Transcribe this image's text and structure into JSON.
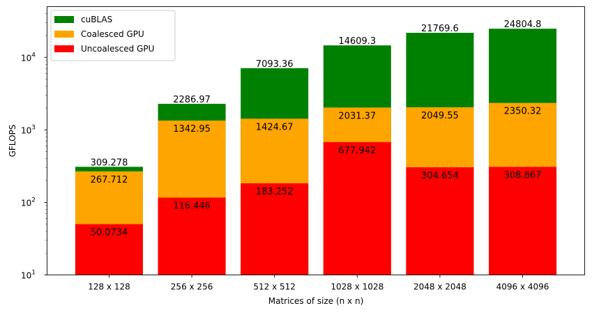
{
  "chart_data": {
    "type": "bar",
    "stacking": "overlaid",
    "xlabel": "Matrices of size (n x n)",
    "ylabel": "GFLOPS",
    "yscale": "log",
    "ylim": [
      10,
      50000
    ],
    "categories": [
      "128 x 128",
      "256 x 256",
      "512 x 512",
      "1028 x 1028",
      "2048 x 2048",
      "4096 x 4096"
    ],
    "series": [
      {
        "name": "cuBLAS",
        "color": "#008000",
        "values": [
          309.278,
          2286.97,
          7093.36,
          14609.3,
          21769.6,
          24804.8
        ],
        "value_labels": [
          "309.278",
          "2286.97",
          "7093.36",
          "14609.3",
          "21769.6",
          "24804.8"
        ]
      },
      {
        "name": "Coalesced GPU",
        "color": "#ffa500",
        "values": [
          267.712,
          1342.95,
          1424.67,
          2031.37,
          2049.55,
          2350.32
        ],
        "value_labels": [
          "267.712",
          "1342.95",
          "1424.67",
          "2031.37",
          "2049.55",
          "2350.32"
        ]
      },
      {
        "name": "Uncoalesced GPU",
        "color": "#ff0000",
        "values": [
          50.0734,
          116.446,
          183.252,
          677.942,
          304.654,
          308.867
        ],
        "value_labels": [
          "50.0734",
          "116.446",
          "183.252",
          "677.942",
          "304.654",
          "308.867"
        ]
      }
    ],
    "yticks": [
      {
        "value": 10,
        "base": "10",
        "exp": "1"
      },
      {
        "value": 100,
        "base": "10",
        "exp": "2"
      },
      {
        "value": 1000,
        "base": "10",
        "exp": "3"
      },
      {
        "value": 10000,
        "base": "10",
        "exp": "4"
      }
    ],
    "legend": "top-left",
    "grid": false
  }
}
